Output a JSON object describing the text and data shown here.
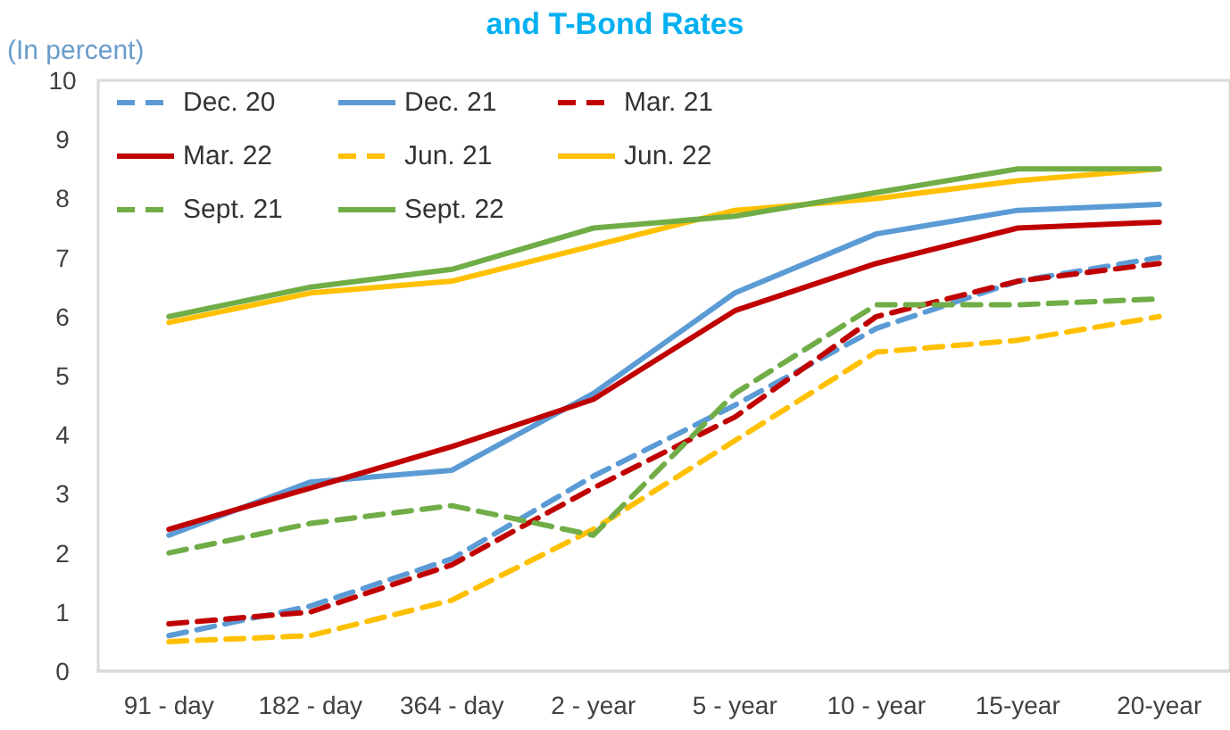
{
  "chart_data": {
    "type": "line",
    "title": "and T-Bond Rates",
    "ylabel": "(In percent)",
    "categories": [
      "91 - day",
      "182 - day",
      "364 - day",
      "2 - year",
      "5 - year",
      "10 - year",
      "15-year",
      "20-year"
    ],
    "series": [
      {
        "name": "Dec. 20",
        "color": "#5b9bd5",
        "line_style": "dashed",
        "values": [
          0.6,
          1.1,
          1.9,
          3.3,
          4.5,
          5.8,
          6.6,
          7.0
        ]
      },
      {
        "name": "Dec. 21",
        "color": "#5b9bd5",
        "line_style": "solid",
        "values": [
          2.3,
          3.2,
          3.4,
          4.7,
          6.4,
          7.4,
          7.8,
          7.9
        ]
      },
      {
        "name": "Mar. 21",
        "color": "#c00000",
        "line_style": "dashed",
        "values": [
          0.8,
          1.0,
          1.8,
          3.1,
          4.3,
          6.0,
          6.6,
          6.9
        ]
      },
      {
        "name": "Mar. 22",
        "color": "#c00000",
        "line_style": "solid",
        "values": [
          2.4,
          3.1,
          3.8,
          4.6,
          6.1,
          6.9,
          7.5,
          7.6
        ]
      },
      {
        "name": "Jun. 21",
        "color": "#ffc000",
        "line_style": "dashed",
        "values": [
          0.5,
          0.6,
          1.2,
          2.4,
          3.9,
          5.4,
          5.6,
          6.0
        ]
      },
      {
        "name": "Jun. 22",
        "color": "#ffc000",
        "line_style": "solid",
        "values": [
          5.9,
          6.4,
          6.6,
          7.2,
          7.8,
          8.0,
          8.3,
          8.5
        ]
      },
      {
        "name": "Sept. 21",
        "color": "#70ad47",
        "line_style": "dashed",
        "values": [
          2.0,
          2.5,
          2.8,
          2.3,
          4.7,
          6.2,
          6.2,
          6.3
        ]
      },
      {
        "name": "Sept. 22",
        "color": "#70ad47",
        "line_style": "solid",
        "values": [
          6.0,
          6.5,
          6.8,
          7.5,
          7.7,
          8.1,
          8.5,
          8.5
        ]
      }
    ],
    "ylim": [
      0,
      10
    ],
    "yticks": [
      0,
      1,
      2,
      3,
      4,
      5,
      6,
      7,
      8,
      9,
      10
    ],
    "legend": "top left",
    "marker": "none"
  }
}
